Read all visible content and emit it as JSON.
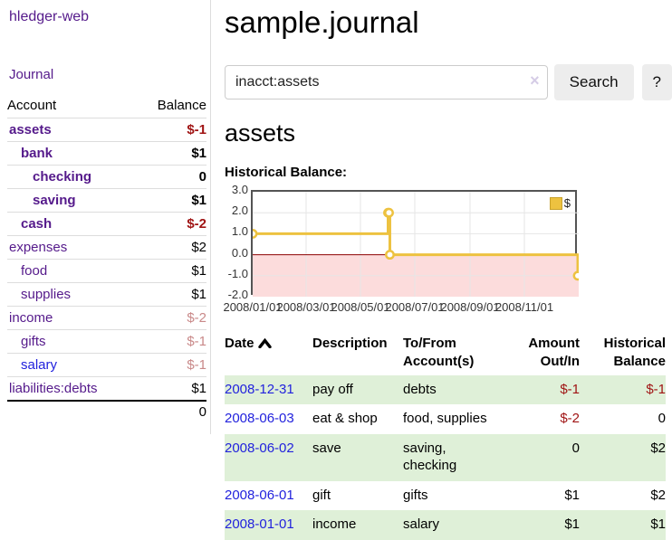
{
  "colors": {
    "purple": "#551a8b",
    "blue": "#2222dd",
    "neg-strong": "#a01414",
    "neg-soft": "#c98989",
    "row-green": "#dff0d8",
    "gold": "#edc240",
    "gold-dark": "#c9a22b",
    "pink": "#fcdcdc",
    "zeroline": "#8b0000",
    "btn": "#ededed",
    "border-gray": "#cccccc",
    "grid": "#e6e6e6",
    "chart-border": "#545454",
    "divider": "#dddddd"
  },
  "sidebar": {
    "app_link": "hledger-web",
    "journal_link": "Journal",
    "table": {
      "headers": {
        "account": "Account",
        "balance": "Balance"
      },
      "accounts": [
        {
          "name": "assets",
          "balance": "$-1",
          "indent": 0,
          "bold": true,
          "balance_class": "neg-strong"
        },
        {
          "name": "bank",
          "balance": "$1",
          "indent": 1,
          "bold": true,
          "balance_class": "strong"
        },
        {
          "name": "checking",
          "balance": "0",
          "indent": 2,
          "bold": true,
          "balance_class": "strong"
        },
        {
          "name": "saving",
          "balance": "$1",
          "indent": 2,
          "bold": true,
          "balance_class": "strong"
        },
        {
          "name": "cash",
          "balance": "$-2",
          "indent": 1,
          "bold": true,
          "balance_class": "neg-strong"
        },
        {
          "name": "expenses",
          "balance": "$2",
          "indent": 0,
          "bold": false,
          "balance_class": ""
        },
        {
          "name": "food",
          "balance": "$1",
          "indent": 1,
          "bold": false,
          "balance_class": ""
        },
        {
          "name": "supplies",
          "balance": "$1",
          "indent": 1,
          "bold": false,
          "balance_class": ""
        },
        {
          "name": "income",
          "balance": "$-2",
          "indent": 0,
          "bold": false,
          "balance_class": "neg-soft"
        },
        {
          "name": "gifts",
          "balance": "$-1",
          "indent": 1,
          "bold": false,
          "balance_class": "neg-soft"
        },
        {
          "name": "salary",
          "balance": "$-1",
          "indent": 1,
          "bold": false,
          "balance_class": "neg-soft",
          "unvisited": true
        },
        {
          "name": "liabilities:debts",
          "balance": "$1",
          "indent": 0,
          "bold": false,
          "balance_class": ""
        }
      ],
      "total": "0"
    }
  },
  "main": {
    "title": "sample.journal",
    "search": {
      "value": "inacct:assets",
      "clear_icon": "×",
      "button": "Search",
      "help_button": "?"
    },
    "account_heading": "assets",
    "chart_heading": "Historical Balance:"
  },
  "chart_data": {
    "type": "line",
    "title": "Historical Balance:",
    "step": true,
    "series": [
      {
        "name": "$",
        "color": "#edc240",
        "points": [
          [
            "2008-01-01",
            1
          ],
          [
            "2008-06-01",
            2
          ],
          [
            "2008-06-02",
            2
          ],
          [
            "2008-06-03",
            0
          ],
          [
            "2008-12-31",
            -1
          ]
        ]
      }
    ],
    "x_range": [
      "2008-01-01",
      "2009-01-01"
    ],
    "x_ticks": [
      "2008/01/01",
      "2008/03/01",
      "2008/05/01",
      "2008/07/01",
      "2008/09/01",
      "2008/11/01"
    ],
    "y_ticks": [
      "3.0",
      "2.0",
      "1.0",
      "0.0",
      "-1.0",
      "-2.0"
    ],
    "ylim": [
      -2,
      3
    ],
    "grid": true,
    "legend": {
      "label": "$",
      "position": "top-right"
    },
    "negative_region_color": "#fcdcdc",
    "zero_line_color": "#8b0000"
  },
  "register_table": {
    "headers": [
      {
        "lines": [
          "Date"
        ],
        "align": "left",
        "sorted": "asc"
      },
      {
        "lines": [
          "Description"
        ],
        "align": "left"
      },
      {
        "lines": [
          "To/From",
          "Account(s)"
        ],
        "align": "left"
      },
      {
        "lines": [
          "Amount",
          "Out/In"
        ],
        "align": "right"
      },
      {
        "lines": [
          "Historical",
          "Balance"
        ],
        "align": "right"
      }
    ],
    "rows": [
      {
        "date": "2008-12-31",
        "description": "pay off",
        "accounts": [
          "debts"
        ],
        "amount": "$-1",
        "amount_negative": true,
        "balance": "$-1",
        "balance_negative": true,
        "highlight": true
      },
      {
        "date": "2008-06-03",
        "description": "eat & shop",
        "accounts": [
          "food, supplies"
        ],
        "amount": "$-2",
        "amount_negative": true,
        "balance": "0",
        "balance_negative": false,
        "highlight": false
      },
      {
        "date": "2008-06-02",
        "description": "save",
        "accounts": [
          "saving,",
          "checking"
        ],
        "amount": "0",
        "amount_negative": false,
        "balance": "$2",
        "balance_negative": false,
        "highlight": true
      },
      {
        "date": "2008-06-01",
        "description": "gift",
        "accounts": [
          "gifts"
        ],
        "amount": "$1",
        "amount_negative": false,
        "balance": "$2",
        "balance_negative": false,
        "highlight": false
      },
      {
        "date": "2008-01-01",
        "description": "income",
        "accounts": [
          "salary"
        ],
        "amount": "$1",
        "amount_negative": false,
        "balance": "$1",
        "balance_negative": false,
        "highlight": true
      }
    ]
  }
}
